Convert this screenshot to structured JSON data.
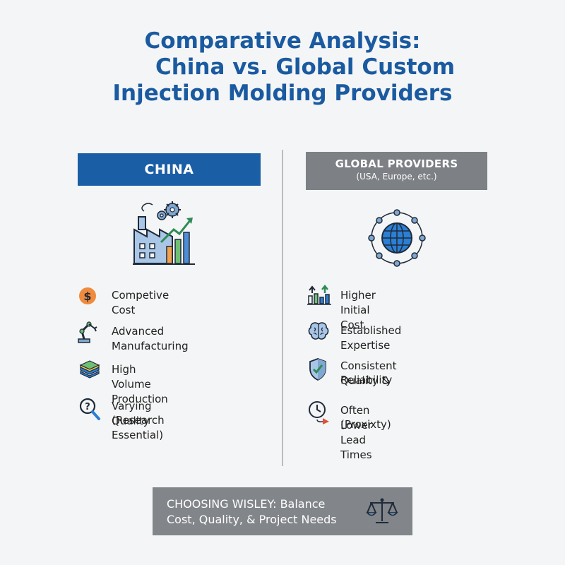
{
  "title": {
    "line1": "Comparative Analysis:",
    "line2": "China vs. Global Custom",
    "line3": "Injection Molding Providers"
  },
  "china": {
    "header": "CHINA",
    "icon": "factory-growth-icon",
    "items": [
      {
        "icon": "dollar-icon",
        "line1": "Competive Cost",
        "line2": ""
      },
      {
        "icon": "robot-arm-icon",
        "line1": "Advanced Manufacturing",
        "line2": ""
      },
      {
        "icon": "layers-icon",
        "line1": "High Volume Production",
        "line2": ""
      },
      {
        "icon": "magnifier-question-icon",
        "line1": "Varying Quality",
        "line2": "(Research Essential)"
      }
    ]
  },
  "global": {
    "header": "GLOBAL PROVIDERS",
    "subheader": "(USA, Europe, etc.)",
    "icon": "globe-network-icon",
    "items": [
      {
        "icon": "bar-arrows-icon",
        "line1": "Higher Initial Cost",
        "line2": ""
      },
      {
        "icon": "brain-icon",
        "line1": "Established Expertise",
        "line2": ""
      },
      {
        "icon": "shield-check-icon",
        "line1": "Consistent Quality &",
        "line2": "Reliability"
      },
      {
        "icon": "clock-arrow-icon",
        "line1": "Often Lower Lead Times",
        "line2": "(Proxixty)"
      }
    ]
  },
  "footer": {
    "line1": "CHOOSING WISLEY: Balance",
    "line2": "Cost, Quality, & Project Needs",
    "icon": "scales-icon"
  },
  "colors": {
    "title": "#1a5aa0",
    "china_header": "#1a5ea6",
    "global_header": "#7d8084",
    "footer": "#828589",
    "background": "#f4f5f6"
  }
}
